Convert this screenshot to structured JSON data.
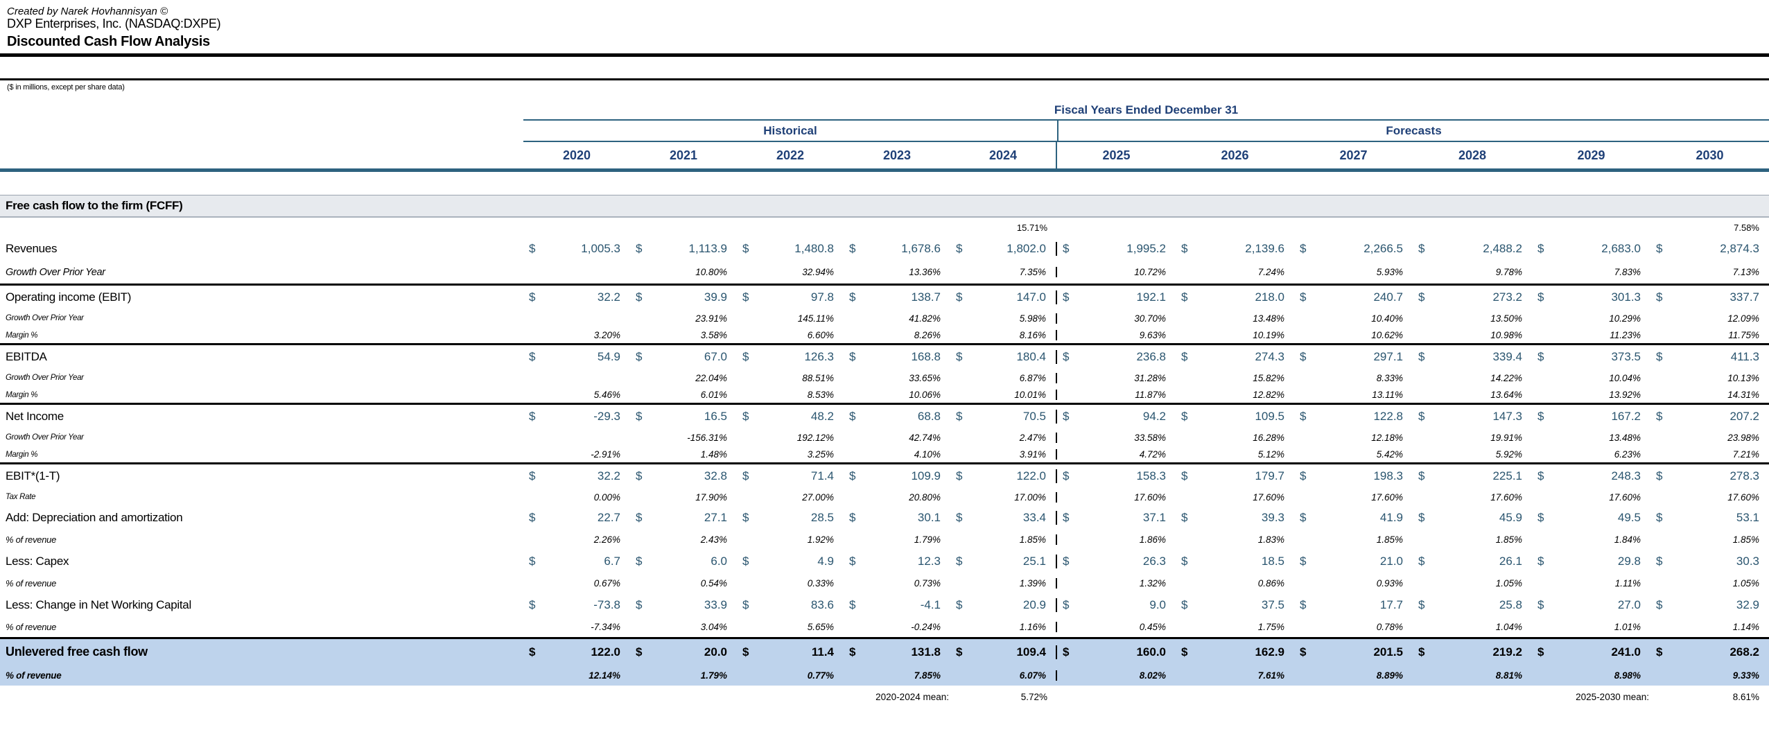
{
  "header": {
    "credit": "Created by Narek Hovhannisyan ©",
    "company": "DXP Enterprises, Inc. (NASDAQ:DXPE)",
    "title": "Discounted Cash Flow Analysis",
    "units_note": "($ in millions, except per share data)"
  },
  "symbols": {
    "dollar": "$"
  },
  "colors": {
    "header_navy": "#1f4077",
    "value_navy": "#2a556f",
    "rule_steel": "#2d627f",
    "section_band_bg": "#e7eaee",
    "highlight_band_bg": "#bed3ec"
  },
  "table": {
    "fiscal_header": "Fiscal Years Ended December 31",
    "group_historical": "Historical",
    "group_forecasts": "Forecasts",
    "years": [
      "2020",
      "2021",
      "2022",
      "2023",
      "2024",
      "2025",
      "2026",
      "2027",
      "2028",
      "2029",
      "2030"
    ],
    "section_header": "Free cash flow to the firm (FCFF)",
    "pre_row": {
      "col_2024": "15.71%",
      "col_2030": "7.58%"
    },
    "rows": [
      {
        "key": "revenues",
        "label": "Revenues",
        "style": "main",
        "dollar": true,
        "border": false,
        "values": [
          "1,005.3",
          "1,113.9",
          "1,480.8",
          "1,678.6",
          "1,802.0",
          "1,995.2",
          "2,139.6",
          "2,266.5",
          "2,488.2",
          "2,683.0",
          "2,874.3"
        ]
      },
      {
        "key": "revenues-growth",
        "label": "Growth Over Prior Year",
        "style": "sub-lg",
        "dollar": false,
        "border": true,
        "values": [
          "",
          "10.80%",
          "32.94%",
          "13.36%",
          "7.35%",
          "10.72%",
          "7.24%",
          "5.93%",
          "9.78%",
          "7.83%",
          "7.13%"
        ]
      },
      {
        "key": "ebit",
        "label": "Operating income (EBIT)",
        "style": "main",
        "dollar": true,
        "border": false,
        "values": [
          "32.2",
          "39.9",
          "97.8",
          "138.7",
          "147.0",
          "192.1",
          "218.0",
          "240.7",
          "273.2",
          "301.3",
          "337.7"
        ]
      },
      {
        "key": "ebit-growth",
        "label": "Growth Over Prior Year",
        "style": "sub-sm",
        "dollar": false,
        "border": false,
        "values": [
          "",
          "23.91%",
          "145.11%",
          "41.82%",
          "5.98%",
          "30.70%",
          "13.48%",
          "10.40%",
          "13.50%",
          "10.29%",
          "12.09%"
        ]
      },
      {
        "key": "ebit-margin",
        "label": "Margin %",
        "style": "sub-sm",
        "dollar": false,
        "border": true,
        "values": [
          "3.20%",
          "3.58%",
          "6.60%",
          "8.26%",
          "8.16%",
          "9.63%",
          "10.19%",
          "10.62%",
          "10.98%",
          "11.23%",
          "11.75%"
        ]
      },
      {
        "key": "ebitda",
        "label": "EBITDA",
        "style": "main",
        "dollar": true,
        "border": false,
        "values": [
          "54.9",
          "67.0",
          "126.3",
          "168.8",
          "180.4",
          "236.8",
          "274.3",
          "297.1",
          "339.4",
          "373.5",
          "411.3"
        ]
      },
      {
        "key": "ebitda-growth",
        "label": "Growth Over Prior Year",
        "style": "sub-sm",
        "dollar": false,
        "border": false,
        "values": [
          "",
          "22.04%",
          "88.51%",
          "33.65%",
          "6.87%",
          "31.28%",
          "15.82%",
          "8.33%",
          "14.22%",
          "10.04%",
          "10.13%"
        ]
      },
      {
        "key": "ebitda-margin",
        "label": "Margin %",
        "style": "sub-sm",
        "dollar": false,
        "border": true,
        "values": [
          "5.46%",
          "6.01%",
          "8.53%",
          "10.06%",
          "10.01%",
          "11.87%",
          "12.82%",
          "13.11%",
          "13.64%",
          "13.92%",
          "14.31%"
        ]
      },
      {
        "key": "net-income",
        "label": "Net Income",
        "style": "main",
        "dollar": true,
        "border": false,
        "values": [
          "-29.3",
          "16.5",
          "48.2",
          "68.8",
          "70.5",
          "94.2",
          "109.5",
          "122.8",
          "147.3",
          "167.2",
          "207.2"
        ]
      },
      {
        "key": "net-income-growth",
        "label": "Growth Over Prior Year",
        "style": "sub-sm",
        "dollar": false,
        "border": false,
        "values": [
          "",
          "-156.31%",
          "192.12%",
          "42.74%",
          "2.47%",
          "33.58%",
          "16.28%",
          "12.18%",
          "19.91%",
          "13.48%",
          "23.98%"
        ]
      },
      {
        "key": "net-income-margin",
        "label": "Margin %",
        "style": "sub-sm",
        "dollar": false,
        "border": true,
        "values": [
          "-2.91%",
          "1.48%",
          "3.25%",
          "4.10%",
          "3.91%",
          "4.72%",
          "5.12%",
          "5.42%",
          "5.92%",
          "6.23%",
          "7.21%"
        ]
      },
      {
        "key": "ebit-after-tax",
        "label": "EBIT*(1-T)",
        "style": "main",
        "dollar": true,
        "border": false,
        "values": [
          "32.2",
          "32.8",
          "71.4",
          "109.9",
          "122.0",
          "158.3",
          "179.7",
          "198.3",
          "225.1",
          "248.3",
          "278.3"
        ]
      },
      {
        "key": "tax-rate",
        "label": "Tax Rate",
        "style": "sub-sm",
        "dollar": false,
        "border": false,
        "values": [
          "0.00%",
          "17.90%",
          "27.00%",
          "20.80%",
          "17.00%",
          "17.60%",
          "17.60%",
          "17.60%",
          "17.60%",
          "17.60%",
          "17.60%"
        ]
      },
      {
        "key": "dep-amort",
        "label": "Add: Depreciation and amortization",
        "style": "main",
        "dollar": true,
        "border": false,
        "values": [
          "22.7",
          "27.1",
          "28.5",
          "30.1",
          "33.4",
          "37.1",
          "39.3",
          "41.9",
          "45.9",
          "49.5",
          "53.1"
        ]
      },
      {
        "key": "dep-amort-pct",
        "label": "% of revenue",
        "style": "sub-md",
        "dollar": false,
        "border": false,
        "values": [
          "2.26%",
          "2.43%",
          "1.92%",
          "1.79%",
          "1.85%",
          "1.86%",
          "1.83%",
          "1.85%",
          "1.85%",
          "1.84%",
          "1.85%"
        ]
      },
      {
        "key": "capex",
        "label": "Less: Capex",
        "style": "main",
        "dollar": true,
        "border": false,
        "values": [
          "6.7",
          "6.0",
          "4.9",
          "12.3",
          "25.1",
          "26.3",
          "18.5",
          "21.0",
          "26.1",
          "29.8",
          "30.3"
        ]
      },
      {
        "key": "capex-pct",
        "label": "% of revenue",
        "style": "sub-md",
        "dollar": false,
        "border": false,
        "values": [
          "0.67%",
          "0.54%",
          "0.33%",
          "0.73%",
          "1.39%",
          "1.32%",
          "0.86%",
          "0.93%",
          "1.05%",
          "1.11%",
          "1.05%"
        ]
      },
      {
        "key": "nwc-change",
        "label": "Less: Change in Net Working Capital",
        "style": "main",
        "dollar": true,
        "border": false,
        "values": [
          "-73.8",
          "33.9",
          "83.6",
          "-4.1",
          "20.9",
          "9.0",
          "37.5",
          "17.7",
          "25.8",
          "27.0",
          "32.9"
        ]
      },
      {
        "key": "nwc-change-pct",
        "label": "% of revenue",
        "style": "sub-md",
        "dollar": false,
        "border": false,
        "values": [
          "-7.34%",
          "3.04%",
          "5.65%",
          "-0.24%",
          "1.16%",
          "0.45%",
          "1.75%",
          "0.78%",
          "1.04%",
          "1.01%",
          "1.14%"
        ]
      },
      {
        "key": "unlevered-fcf",
        "label": "Unlevered free cash flow",
        "style": "hl-main",
        "dollar": true,
        "border": false,
        "values": [
          "122.0",
          "20.0",
          "11.4",
          "131.8",
          "109.4",
          "160.0",
          "162.9",
          "201.5",
          "219.2",
          "241.0",
          "268.2"
        ]
      },
      {
        "key": "unlevered-fcf-pct",
        "label": "% of revenue",
        "style": "hl-sub",
        "dollar": false,
        "border": false,
        "values": [
          "12.14%",
          "1.79%",
          "0.77%",
          "7.85%",
          "6.07%",
          "8.02%",
          "7.61%",
          "8.89%",
          "8.81%",
          "8.98%",
          "9.33%"
        ]
      }
    ],
    "footer": {
      "hist_mean_label": "2020-2024 mean:",
      "hist_mean_value": "5.72%",
      "fcst_mean_label": "2025-2030 mean:",
      "fcst_mean_value": "8.61%"
    }
  }
}
